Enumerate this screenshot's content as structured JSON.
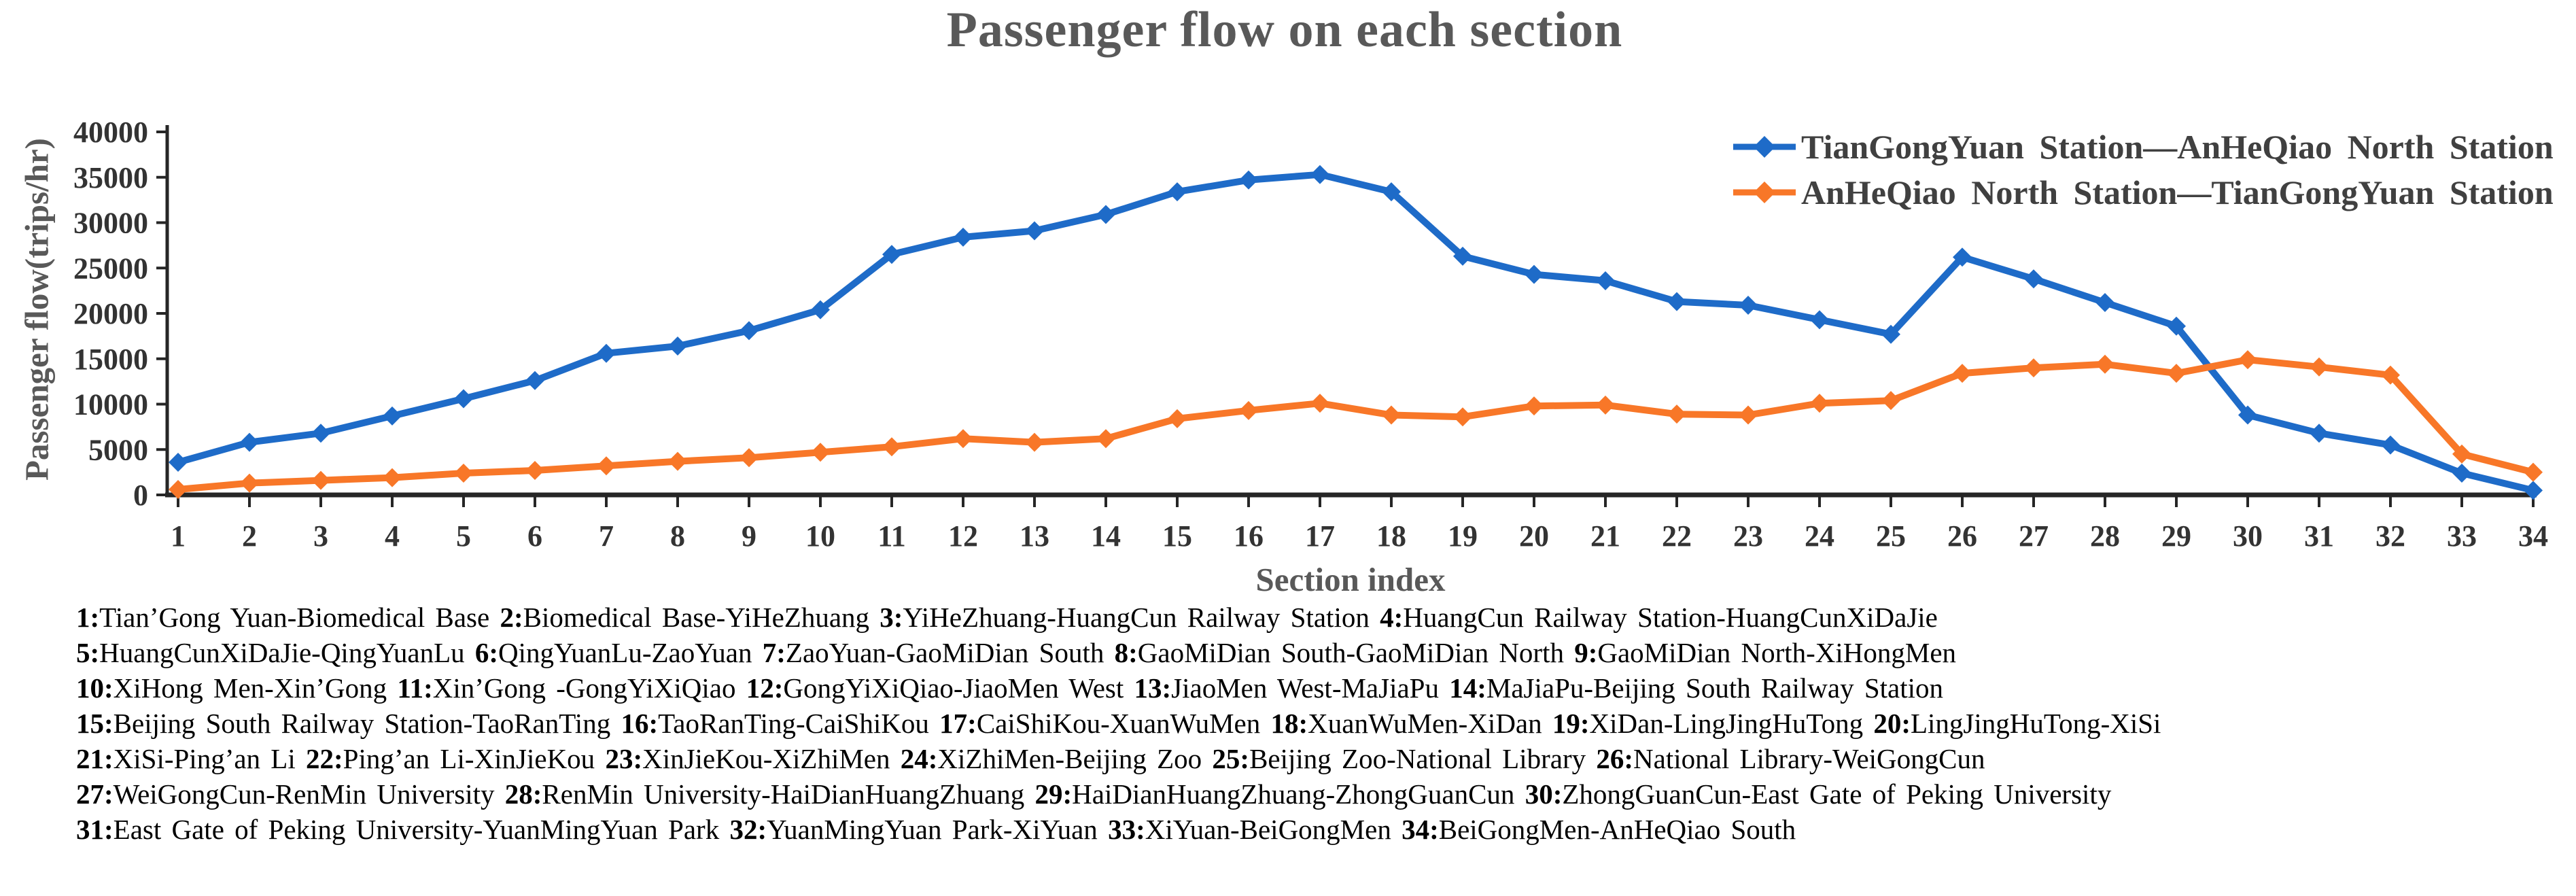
{
  "figure": {
    "title": "Passenger flow on each section",
    "y_axis_label": "Passenger flow(trips/hr)",
    "x_axis_label": "Section index"
  },
  "chart_data": {
    "type": "line",
    "title": "Passenger flow on each section",
    "xlabel": "Section index",
    "ylabel": "Passenger flow(trips/hr)",
    "categories": [
      1,
      2,
      3,
      4,
      5,
      6,
      7,
      8,
      9,
      10,
      11,
      12,
      13,
      14,
      15,
      16,
      17,
      18,
      19,
      20,
      21,
      22,
      23,
      24,
      25,
      26,
      27,
      28,
      29,
      30,
      31,
      32,
      33,
      34
    ],
    "ylim": [
      0,
      40000
    ],
    "yticks": [
      0,
      5000,
      10000,
      15000,
      20000,
      25000,
      30000,
      35000,
      40000
    ],
    "grid": false,
    "legend_position": "top-right",
    "marker": "diamond",
    "series": [
      {
        "name": "TianGongYuan Station—AnHeQiao North Station",
        "color": "#1E6BC8",
        "values": [
          3600,
          5800,
          6800,
          8700,
          10600,
          12600,
          15600,
          16400,
          18100,
          20400,
          26500,
          28400,
          29100,
          30900,
          33400,
          34700,
          35300,
          33400,
          26300,
          24300,
          23600,
          21300,
          20900,
          19300,
          17700,
          26200,
          23800,
          21200,
          18600,
          8800,
          6800,
          5500,
          2400,
          500
        ]
      },
      {
        "name": "AnHeQiao North Station—TianGongYuan Station",
        "color": "#F87728",
        "values": [
          600,
          1300,
          1600,
          1900,
          2400,
          2700,
          3200,
          3700,
          4100,
          4700,
          5300,
          6200,
          5800,
          6200,
          8400,
          9300,
          10100,
          8800,
          8600,
          9800,
          9900,
          8900,
          8800,
          10100,
          10400,
          13400,
          14000,
          14400,
          13400,
          14900,
          14100,
          13200,
          4500,
          2500
        ]
      }
    ]
  },
  "footnotes": {
    "lines": [
      [
        [
          "1",
          "Tian’Gong Yuan-Biomedical Base"
        ],
        [
          "2",
          "Biomedical Base-YiHeZhuang"
        ],
        [
          "3",
          "YiHeZhuang-HuangCun Railway Station"
        ],
        [
          "4",
          "HuangCun Railway Station-HuangCunXiDaJie"
        ]
      ],
      [
        [
          "5",
          "HuangCunXiDaJie-QingYuanLu"
        ],
        [
          "6",
          "QingYuanLu-ZaoYuan"
        ],
        [
          "7",
          "ZaoYuan-GaoMiDian South"
        ],
        [
          "8",
          "GaoMiDian South-GaoMiDian North"
        ],
        [
          "9",
          "GaoMiDian North-XiHongMen"
        ]
      ],
      [
        [
          "10",
          "XiHong Men-Xin’Gong"
        ],
        [
          "11",
          "Xin’Gong -GongYiXiQiao"
        ],
        [
          "12",
          "GongYiXiQiao-JiaoMen West"
        ],
        [
          "13",
          "JiaoMen West-MaJiaPu"
        ],
        [
          "14",
          "MaJiaPu-Beijing South Railway Station"
        ]
      ],
      [
        [
          "15",
          "Beijing South Railway Station-TaoRanTing"
        ],
        [
          "16",
          "TaoRanTing-CaiShiKou"
        ],
        [
          "17",
          "CaiShiKou-XuanWuMen"
        ],
        [
          "18",
          "XuanWuMen-XiDan"
        ],
        [
          "19",
          "XiDan-LingJingHuTong"
        ],
        [
          "20",
          "LingJingHuTong-XiSi"
        ]
      ],
      [
        [
          "21",
          "XiSi-Ping’an Li"
        ],
        [
          "22",
          "Ping’an Li-XinJieKou"
        ],
        [
          "23",
          "XinJieKou-XiZhiMen"
        ],
        [
          "24",
          "XiZhiMen-Beijing Zoo"
        ],
        [
          "25",
          "Beijing Zoo-National Library"
        ],
        [
          "26",
          "National Library-WeiGongCun"
        ]
      ],
      [
        [
          "27",
          "WeiGongCun-RenMin University"
        ],
        [
          "28",
          "RenMin University-HaiDianHuangZhuang"
        ],
        [
          "29",
          "HaiDianHuangZhuang-ZhongGuanCun"
        ],
        [
          "30",
          "ZhongGuanCun-East Gate of Peking University"
        ]
      ],
      [
        [
          "31",
          "East Gate of Peking University-YuanMingYuan Park"
        ],
        [
          "32",
          "YuanMingYuan Park-XiYuan"
        ],
        [
          "33",
          "XiYuan-BeiGongMen"
        ],
        [
          "34",
          "BeiGongMen-AnHeQiao South"
        ]
      ]
    ]
  },
  "colors": {
    "title_gray": "#595959",
    "tick_label": "#333333",
    "axis": "#262626",
    "series_blue": "#1E6BC8",
    "series_orange": "#F87728"
  }
}
